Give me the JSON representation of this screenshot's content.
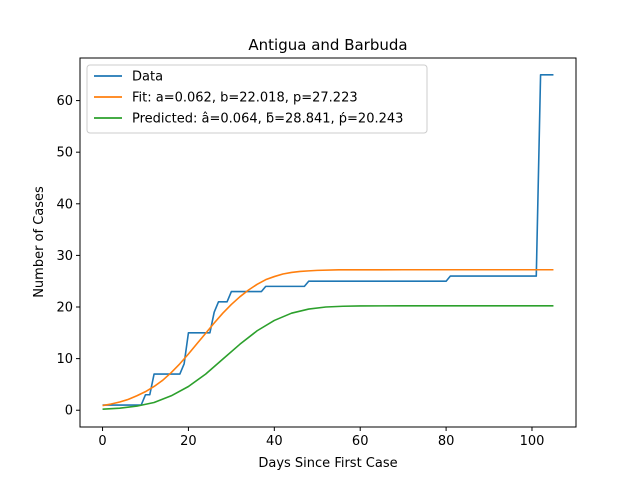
{
  "chart_data": {
    "type": "line",
    "title": "Antigua and Barbuda",
    "xlabel": "Days Since First Case",
    "ylabel": "Number of Cases",
    "xlim": [
      -5.25,
      110.25
    ],
    "ylim": [
      -3.25,
      68.25
    ],
    "xticks": [
      0,
      20,
      40,
      60,
      80,
      100
    ],
    "yticks": [
      0,
      10,
      20,
      30,
      40,
      50,
      60
    ],
    "grid": false,
    "legend_position": "top-left",
    "series": [
      {
        "name": "Data",
        "color": "#1f77b4",
        "x": [
          0,
          9,
          10,
          11,
          12,
          18,
          19,
          20,
          25,
          26,
          27,
          29,
          30,
          37,
          38,
          47,
          48,
          80,
          81,
          101,
          102,
          105
        ],
        "y": [
          1,
          1,
          3,
          3,
          7,
          7,
          9,
          15,
          15,
          19,
          21,
          21,
          23,
          23,
          24,
          24,
          25,
          25,
          26,
          26,
          65,
          65
        ]
      },
      {
        "name": "Fit: a=0.062, b=22.018, p=27.223",
        "color": "#ff7f0e",
        "x": [
          0,
          2,
          4,
          6,
          8,
          10,
          12,
          14,
          16,
          18,
          20,
          22,
          24,
          26,
          28,
          30,
          32,
          34,
          36,
          38,
          40,
          42,
          44,
          46,
          48,
          50,
          55,
          60,
          70,
          80,
          90,
          100,
          105
        ],
        "y": [
          0.9,
          1.2,
          1.6,
          2.1,
          2.8,
          3.6,
          4.6,
          5.8,
          7.3,
          9.0,
          10.9,
          12.9,
          14.9,
          16.9,
          18.8,
          20.5,
          22.0,
          23.3,
          24.4,
          25.3,
          25.9,
          26.4,
          26.7,
          26.9,
          27.0,
          27.1,
          27.2,
          27.2,
          27.22,
          27.22,
          27.22,
          27.22,
          27.22
        ]
      },
      {
        "name": "Predicted: â=0.064, ƃ=28.841, ṕ=20.243",
        "color": "#2ca02c",
        "x": [
          0,
          4,
          8,
          12,
          16,
          20,
          24,
          28,
          32,
          36,
          40,
          44,
          48,
          52,
          56,
          60,
          70,
          80,
          90,
          100,
          105
        ],
        "y": [
          0.2,
          0.4,
          0.8,
          1.5,
          2.8,
          4.6,
          7.0,
          9.9,
          12.8,
          15.4,
          17.4,
          18.8,
          19.6,
          20.0,
          20.15,
          20.2,
          20.24,
          20.24,
          20.24,
          20.24,
          20.24
        ]
      }
    ]
  }
}
